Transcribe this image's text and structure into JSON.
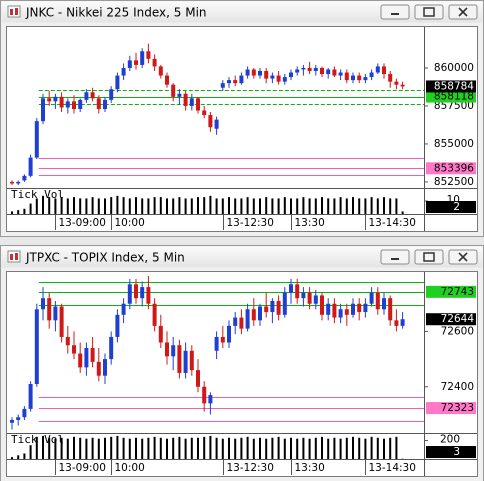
{
  "chart_data": [
    {
      "type": "candlestick",
      "title": "JNKC - Nikkei 225 Index, 5 Min",
      "categories": [
        null,
        null,
        null,
        null,
        null,
        null,
        null,
        "13-09:00",
        null,
        null,
        null,
        null,
        null,
        null,
        null,
        null,
        "10:00",
        null,
        null,
        null,
        null,
        null,
        null,
        null,
        null,
        null,
        null,
        null,
        null,
        null,
        null,
        null,
        null,
        null,
        "13-12:30",
        null,
        null,
        null,
        null,
        null,
        null,
        null,
        null,
        null,
        null,
        "13:30",
        null,
        null,
        null,
        null,
        null,
        null,
        null,
        null,
        null,
        null,
        null,
        "13-14:30",
        null,
        null,
        null,
        null,
        null,
        null
      ],
      "open": [
        852500,
        852400,
        852600,
        852900,
        854100,
        856500,
        858000,
        857800,
        858100,
        857400,
        857800,
        857300,
        857900,
        858400,
        858000,
        857300,
        857900,
        858600,
        859500,
        860000,
        860500,
        860200,
        861100,
        860600,
        860100,
        859500,
        858900,
        858100,
        858300,
        857500,
        858000,
        857200,
        856900,
        856000,
        858700,
        859000,
        859200,
        859000,
        859500,
        859900,
        859500,
        859800,
        859300,
        859500,
        859100,
        859400,
        859700,
        859900,
        860000,
        859800,
        860000,
        859600,
        859900,
        859500,
        859700,
        859200,
        859500,
        859200,
        859400,
        859700,
        860100,
        859600,
        859100,
        858900
      ],
      "high": [
        852600,
        852600,
        853000,
        854300,
        856700,
        858300,
        858500,
        858300,
        858400,
        858000,
        858200,
        858000,
        858600,
        858700,
        858200,
        858100,
        858800,
        859700,
        860300,
        860800,
        861000,
        861300,
        861600,
        860900,
        860200,
        859700,
        859000,
        858600,
        858500,
        858300,
        858100,
        857500,
        857100,
        856800,
        859200,
        859400,
        859500,
        859700,
        860100,
        860000,
        860000,
        860000,
        859700,
        859800,
        859600,
        859900,
        860100,
        860200,
        860400,
        860200,
        860100,
        860000,
        860100,
        859900,
        859900,
        859700,
        859700,
        859600,
        859900,
        860300,
        860300,
        859800,
        859300,
        859100
      ],
      "low": [
        852300,
        852300,
        852500,
        852800,
        854000,
        856300,
        857500,
        857300,
        857100,
        857000,
        857000,
        857100,
        857700,
        857800,
        857000,
        857100,
        857700,
        858400,
        859200,
        859800,
        859900,
        860000,
        860300,
        859800,
        859300,
        858700,
        857800,
        857600,
        857200,
        857200,
        857000,
        856700,
        855800,
        855600,
        858500,
        858700,
        858800,
        858900,
        859300,
        859300,
        859300,
        859000,
        859000,
        858900,
        858900,
        859200,
        859500,
        859500,
        859600,
        859500,
        859400,
        859300,
        859400,
        859200,
        859000,
        859000,
        859000,
        859000,
        859200,
        859600,
        859300,
        858700,
        858600,
        858600
      ],
      "close": [
        852400,
        852500,
        852900,
        854100,
        856500,
        858000,
        857800,
        858100,
        857400,
        857800,
        857300,
        857900,
        858400,
        858000,
        857300,
        857900,
        858600,
        859500,
        860000,
        860500,
        860200,
        861100,
        860600,
        860100,
        859500,
        858900,
        858100,
        858300,
        857500,
        858000,
        857200,
        856900,
        856100,
        856600,
        859000,
        859200,
        859000,
        859500,
        859900,
        859500,
        859800,
        859300,
        859500,
        859100,
        859400,
        859700,
        859900,
        860000,
        859800,
        860000,
        859600,
        859900,
        859500,
        859700,
        859200,
        859500,
        859200,
        859400,
        859700,
        860100,
        859600,
        859100,
        858900,
        858784
      ],
      "up_color": "#1f3fd0",
      "down_color": "#d01818",
      "ylim": [
        852100,
        862630
      ],
      "yticks": [
        852500,
        855000,
        857500,
        860000
      ],
      "bands": [
        {
          "color": "#10b010",
          "box_color": "#20d020",
          "upper": 858550,
          "mid": 858118,
          "lower": 857630,
          "dashed": true
        },
        {
          "color": "#ee60b8",
          "box_color": "#ff78c8",
          "upper": 854080,
          "mid": 853396,
          "lower": 852960,
          "dashed": false
        }
      ],
      "volume_label": "Tick Vol",
      "volume": [
        2,
        3,
        4,
        8,
        12,
        14,
        13,
        12,
        13,
        12,
        13,
        12,
        12,
        13,
        12,
        12,
        13,
        14,
        13,
        12,
        13,
        12,
        12,
        13,
        13,
        12,
        12,
        13,
        12,
        12,
        13,
        13,
        14,
        12,
        12,
        13,
        12,
        12,
        13,
        12,
        12,
        13,
        12,
        12,
        13,
        12,
        12,
        13,
        12,
        12,
        13,
        12,
        12,
        13,
        12,
        13,
        12,
        12,
        13,
        12,
        13,
        12,
        12,
        2
      ],
      "volume_ylim": [
        0,
        18.5
      ],
      "volume_yticks": [
        10
      ]
    },
    {
      "type": "candlestick",
      "title": "JTPXC - TOPIX Index, 5 Min",
      "categories": [
        null,
        null,
        null,
        null,
        null,
        null,
        null,
        "13-09:00",
        null,
        null,
        null,
        null,
        null,
        null,
        null,
        null,
        "10:00",
        null,
        null,
        null,
        null,
        null,
        null,
        null,
        null,
        null,
        null,
        null,
        null,
        null,
        null,
        null,
        null,
        null,
        "13-12:30",
        null,
        null,
        null,
        null,
        null,
        null,
        null,
        null,
        null,
        null,
        "13:30",
        null,
        null,
        null,
        null,
        null,
        null,
        null,
        null,
        null,
        null,
        null,
        "13-14:30",
        null,
        null,
        null,
        null,
        null,
        null
      ],
      "open": [
        72270,
        72280,
        72290,
        72320,
        72410,
        72680,
        72720,
        72640,
        72690,
        72580,
        72550,
        72520,
        72470,
        72540,
        72490,
        72440,
        72500,
        72580,
        72660,
        72700,
        72770,
        72720,
        72760,
        72700,
        72620,
        72560,
        72510,
        72550,
        72450,
        72530,
        72460,
        72400,
        72340,
        72530,
        72580,
        72560,
        72620,
        72650,
        72610,
        72680,
        72640,
        72690,
        72670,
        72710,
        72660,
        72740,
        72770,
        72720,
        72740,
        72700,
        72730,
        72660,
        72700,
        72650,
        72680,
        72660,
        72700,
        72670,
        72700,
        72740,
        72680,
        72720,
        72640,
        72620
      ],
      "high": [
        72290,
        72300,
        72330,
        72420,
        72700,
        72760,
        72740,
        72710,
        72700,
        72620,
        72600,
        72560,
        72560,
        72580,
        72540,
        72520,
        72600,
        72680,
        72720,
        72790,
        72790,
        72780,
        72800,
        72720,
        72660,
        72600,
        72580,
        72570,
        72560,
        72550,
        72500,
        72420,
        72380,
        72600,
        72620,
        72640,
        72670,
        72680,
        72700,
        72720,
        72700,
        72740,
        72720,
        72730,
        72760,
        72790,
        72790,
        72760,
        72760,
        72750,
        72740,
        72720,
        72720,
        72700,
        72700,
        72720,
        72720,
        72720,
        72760,
        72760,
        72740,
        72730,
        72680,
        72670
      ],
      "low": [
        72245,
        72260,
        72280,
        72310,
        72400,
        72640,
        72610,
        72600,
        72560,
        72520,
        72500,
        72450,
        72440,
        72470,
        72420,
        72410,
        72480,
        72560,
        72630,
        72680,
        72700,
        72690,
        72680,
        72600,
        72540,
        72480,
        72460,
        72430,
        72430,
        72440,
        72380,
        72310,
        72300,
        72500,
        72540,
        72540,
        72590,
        72590,
        72600,
        72620,
        72620,
        72650,
        72630,
        72640,
        72650,
        72700,
        72700,
        72690,
        72680,
        72680,
        72640,
        72640,
        72630,
        72630,
        72620,
        72650,
        72640,
        72650,
        72690,
        72660,
        72660,
        72620,
        72600,
        72610
      ],
      "close": [
        72280,
        72290,
        72320,
        72410,
        72680,
        72720,
        72640,
        72690,
        72580,
        72550,
        72520,
        72470,
        72540,
        72490,
        72440,
        72500,
        72580,
        72660,
        72700,
        72770,
        72720,
        72760,
        72700,
        72620,
        72560,
        72510,
        72550,
        72450,
        72530,
        72460,
        72400,
        72340,
        72370,
        72580,
        72560,
        72620,
        72650,
        72610,
        72680,
        72640,
        72690,
        72670,
        72710,
        72660,
        72740,
        72770,
        72720,
        72740,
        72700,
        72730,
        72660,
        72700,
        72650,
        72680,
        72660,
        72700,
        72670,
        72700,
        72740,
        72680,
        72720,
        72640,
        72620,
        72644
      ],
      "up_color": "#1f3fd0",
      "down_color": "#d01818",
      "ylim": [
        72233,
        72811
      ],
      "yticks": [
        72400,
        72600
      ],
      "bands": [
        {
          "color": "#10b010",
          "box_color": "#20d020",
          "upper": 72778,
          "mid": 72743,
          "lower": 72694,
          "dashed": false
        },
        {
          "color": "#ee60b8",
          "box_color": "#ff78c8",
          "upper": 72364,
          "mid": 72323,
          "lower": 72276,
          "dashed": false
        }
      ],
      "volume_label": "Tick Vol",
      "volume": [
        20,
        40,
        60,
        150,
        240,
        250,
        230,
        220,
        230,
        220,
        240,
        230,
        220,
        230,
        220,
        230,
        240,
        250,
        230,
        220,
        230,
        220,
        230,
        240,
        230,
        220,
        230,
        240,
        220,
        230,
        230,
        240,
        250,
        230,
        220,
        230,
        220,
        230,
        240,
        220,
        230,
        220,
        230,
        240,
        220,
        230,
        220,
        230,
        220,
        230,
        240,
        220,
        230,
        220,
        230,
        240,
        230,
        220,
        240,
        230,
        220,
        230,
        240,
        3
      ],
      "volume_ylim": [
        0,
        260
      ],
      "volume_yticks": [
        200
      ]
    }
  ]
}
